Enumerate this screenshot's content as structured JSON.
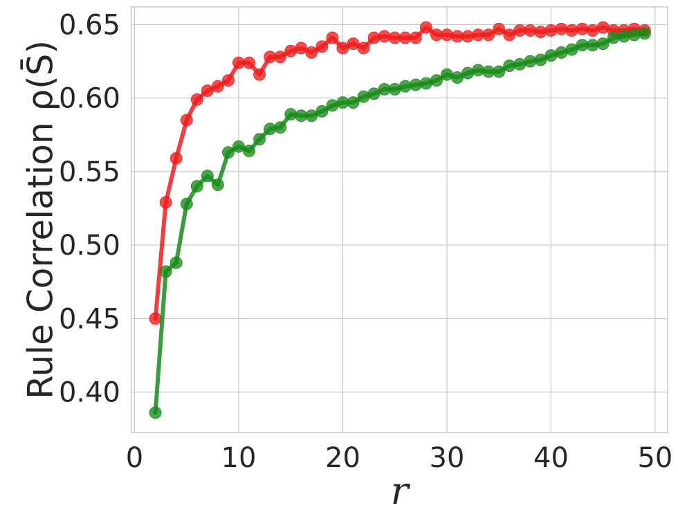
{
  "chart_data": {
    "type": "line",
    "title": "",
    "xlabel": "r",
    "ylabel": "Rule Correlation ρ(S̄)",
    "xlim": [
      -0.3,
      51.2
    ],
    "ylim": [
      0.3725,
      0.662
    ],
    "x_ticks": [
      0,
      10,
      20,
      30,
      40,
      50
    ],
    "y_ticks": [
      0.4,
      0.45,
      0.5,
      0.55,
      0.6,
      0.65
    ],
    "x_tick_labels": [
      "0",
      "10",
      "20",
      "30",
      "40",
      "50"
    ],
    "y_tick_labels": [
      "0.40",
      "0.45",
      "0.50",
      "0.55",
      "0.60",
      "0.65"
    ],
    "grid": true,
    "legend": "none",
    "x": [
      2,
      3,
      4,
      5,
      6,
      7,
      8,
      9,
      10,
      11,
      12,
      13,
      14,
      15,
      16,
      17,
      18,
      19,
      20,
      21,
      22,
      23,
      24,
      25,
      26,
      27,
      28,
      29,
      30,
      31,
      32,
      33,
      34,
      35,
      36,
      37,
      38,
      39,
      40,
      41,
      42,
      43,
      44,
      45,
      46,
      47,
      48,
      49
    ],
    "series": [
      {
        "color": "#ee1c1c",
        "values": [
          0.45,
          0.529,
          0.559,
          0.585,
          0.599,
          0.605,
          0.608,
          0.612,
          0.624,
          0.624,
          0.616,
          0.628,
          0.628,
          0.632,
          0.634,
          0.631,
          0.635,
          0.641,
          0.634,
          0.637,
          0.634,
          0.641,
          0.642,
          0.641,
          0.641,
          0.641,
          0.648,
          0.643,
          0.643,
          0.642,
          0.642,
          0.643,
          0.643,
          0.647,
          0.643,
          0.646,
          0.646,
          0.645,
          0.646,
          0.647,
          0.646,
          0.647,
          0.646,
          0.648,
          0.646,
          0.646,
          0.647,
          0.646
        ]
      },
      {
        "color": "#1a8a1a",
        "values": [
          0.386,
          0.482,
          0.488,
          0.528,
          0.54,
          0.547,
          0.541,
          0.563,
          0.567,
          0.564,
          0.572,
          0.579,
          0.58,
          0.589,
          0.588,
          0.588,
          0.591,
          0.595,
          0.597,
          0.597,
          0.601,
          0.603,
          0.606,
          0.606,
          0.608,
          0.609,
          0.61,
          0.612,
          0.616,
          0.614,
          0.617,
          0.619,
          0.618,
          0.618,
          0.622,
          0.623,
          0.625,
          0.626,
          0.629,
          0.631,
          0.633,
          0.636,
          0.636,
          0.637,
          0.641,
          0.642,
          0.643,
          0.644
        ]
      }
    ]
  }
}
